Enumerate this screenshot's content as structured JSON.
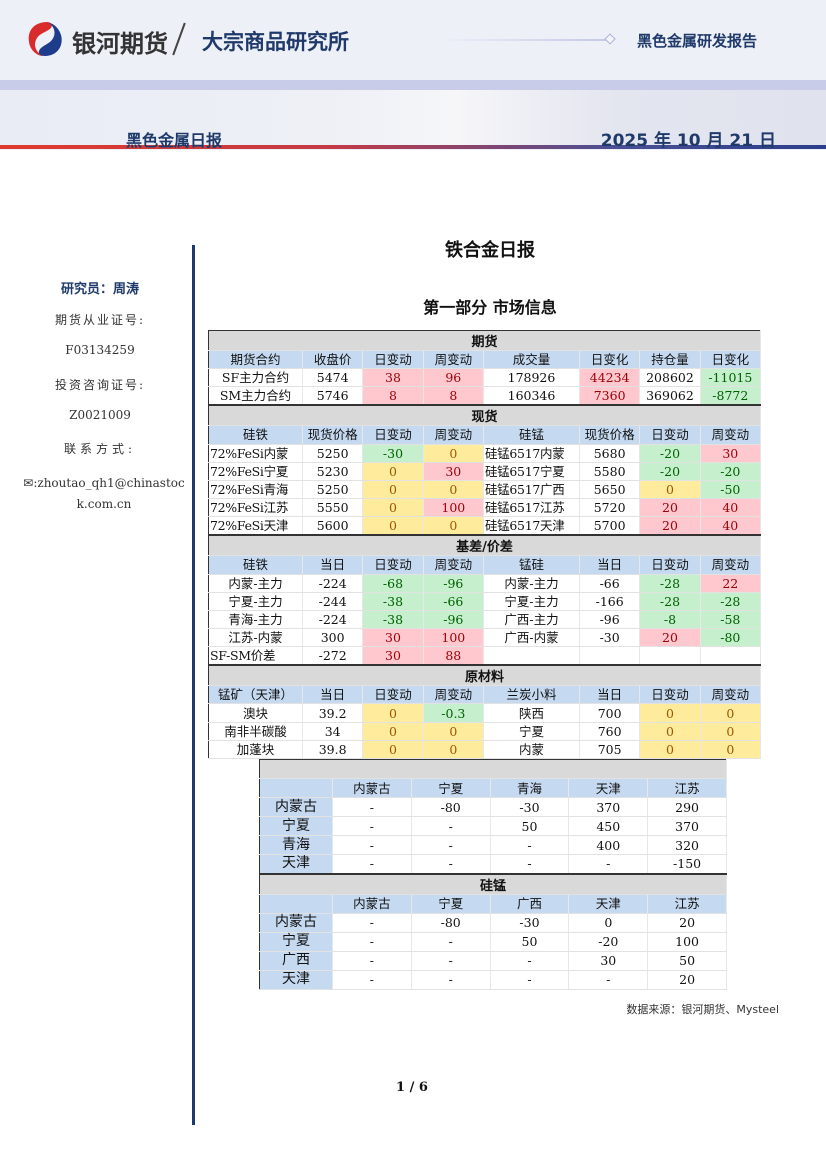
{
  "header": {
    "brand": "银河期货",
    "institute": "大宗商品研究所",
    "report_type": "黑色金属研发报告",
    "daily_name": "黑色金属日报",
    "date": "2025 年 10 月 21 日"
  },
  "sidebar": {
    "researcher": "研究员：周涛",
    "cert1_label": "期货从业证号:",
    "cert1": "F03134259",
    "cert2_label": "投资咨询证号:",
    "cert2": "Z0021009",
    "contact_label": "联系方式:",
    "email": "zhoutao_qh1@chinastock.com.cn"
  },
  "main": {
    "title": "铁合金日报",
    "section": "第一部分 市场信息",
    "source": "数据来源：银河期货、Mysteel",
    "page": "1 / 6"
  },
  "tones": {
    "r": "#ffc7ce",
    "g": "#c6efce",
    "y": "#ffeb9c"
  },
  "market_table": {
    "sections": [
      {
        "title": "期货",
        "headers": [
          "期货合约",
          "收盘价",
          "日变动",
          "周变动",
          "成交量",
          "日变化",
          "持仓量",
          "日变化"
        ],
        "rows": [
          [
            "SF主力合约",
            "5474",
            "38",
            "96",
            "178926",
            "44234",
            "208602",
            "-11015"
          ],
          [
            "SM主力合约",
            "5746",
            "8",
            "8",
            "160346",
            "7360",
            "369062",
            "-8772"
          ]
        ],
        "tones": [
          [
            "",
            "",
            "r",
            "r",
            "",
            "r",
            "",
            "g"
          ],
          [
            "",
            "",
            "r",
            "r",
            "",
            "r",
            "",
            "g"
          ]
        ]
      },
      {
        "title": "现货",
        "headers": [
          "硅铁",
          "现货价格",
          "日变动",
          "周变动",
          "硅锰",
          "现货价格",
          "日变动",
          "周变动"
        ],
        "rows": [
          [
            "72%FeSi内蒙",
            "5250",
            "-30",
            "0",
            "硅锰6517内蒙",
            "5680",
            "-20",
            "30"
          ],
          [
            "72%FeSi宁夏",
            "5230",
            "0",
            "30",
            "硅锰6517宁夏",
            "5580",
            "-20",
            "-20"
          ],
          [
            "72%FeSi青海",
            "5250",
            "0",
            "0",
            "硅锰6517广西",
            "5650",
            "0",
            "-50"
          ],
          [
            "72%FeSi江苏",
            "5550",
            "0",
            "100",
            "硅锰6517江苏",
            "5720",
            "20",
            "40"
          ],
          [
            "72%FeSi天津",
            "5600",
            "0",
            "0",
            "硅锰6517天津",
            "5700",
            "20",
            "40"
          ]
        ],
        "tones": [
          [
            "",
            "",
            "g",
            "y",
            "",
            "",
            "g",
            "r"
          ],
          [
            "",
            "",
            "y",
            "r",
            "",
            "",
            "g",
            "g"
          ],
          [
            "",
            "",
            "y",
            "y",
            "",
            "",
            "y",
            "g"
          ],
          [
            "",
            "",
            "y",
            "r",
            "",
            "",
            "r",
            "r"
          ],
          [
            "",
            "",
            "y",
            "y",
            "",
            "",
            "r",
            "r"
          ]
        ]
      },
      {
        "title": "基差/价差",
        "headers": [
          "硅铁",
          "当日",
          "日变动",
          "周变动",
          "锰硅",
          "当日",
          "日变动",
          "周变动"
        ],
        "rows": [
          [
            "内蒙-主力",
            "-224",
            "-68",
            "-96",
            "内蒙-主力",
            "-66",
            "-28",
            "22"
          ],
          [
            "宁夏-主力",
            "-244",
            "-38",
            "-66",
            "宁夏-主力",
            "-166",
            "-28",
            "-28"
          ],
          [
            "青海-主力",
            "-224",
            "-38",
            "-96",
            "广西-主力",
            "-96",
            "-8",
            "-58"
          ],
          [
            "江苏-内蒙",
            "300",
            "30",
            "100",
            "广西-内蒙",
            "-30",
            "20",
            "-80"
          ],
          [
            "SF-SM价差",
            "-272",
            "30",
            "88",
            "",
            "",
            "",
            ""
          ]
        ],
        "tones": [
          [
            "",
            "",
            "g",
            "g",
            "",
            "",
            "g",
            "r"
          ],
          [
            "",
            "",
            "g",
            "g",
            "",
            "",
            "g",
            "g"
          ],
          [
            "",
            "",
            "g",
            "g",
            "",
            "",
            "g",
            "g"
          ],
          [
            "",
            "",
            "r",
            "r",
            "",
            "",
            "r",
            "g"
          ],
          [
            "",
            "",
            "r",
            "r",
            "",
            "",
            "",
            ""
          ]
        ]
      },
      {
        "title": "原材料",
        "headers": [
          "锰矿（天津）",
          "当日",
          "日变动",
          "周变动",
          "兰炭小料",
          "当日",
          "日变动",
          "周变动"
        ],
        "rows": [
          [
            "澳块",
            "39.2",
            "0",
            "-0.3",
            "陕西",
            "700",
            "0",
            "0"
          ],
          [
            "南非半碳酸",
            "34",
            "0",
            "0",
            "宁夏",
            "760",
            "0",
            "0"
          ],
          [
            "加蓬块",
            "39.8",
            "0",
            "0",
            "内蒙",
            "705",
            "0",
            "0"
          ]
        ],
        "tones": [
          [
            "",
            "",
            "y",
            "g",
            "",
            "",
            "y",
            "y"
          ],
          [
            "",
            "",
            "y",
            "y",
            "",
            "",
            "y",
            "y"
          ],
          [
            "",
            "",
            "y",
            "y",
            "",
            "",
            "y",
            "y"
          ]
        ]
      }
    ]
  },
  "spread_table": {
    "sections": [
      {
        "title": "",
        "headers": [
          "",
          "内蒙古",
          "宁夏",
          "青海",
          "天津",
          "江苏"
        ],
        "rows": [
          [
            "内蒙古",
            "-",
            "-80",
            "-30",
            "370",
            "290"
          ],
          [
            "宁夏",
            "-",
            "-",
            "50",
            "450",
            "370"
          ],
          [
            "青海",
            "-",
            "-",
            "-",
            "400",
            "320"
          ],
          [
            "天津",
            "-",
            "-",
            "-",
            "-",
            "-150"
          ]
        ]
      },
      {
        "title": "硅锰",
        "headers": [
          "",
          "内蒙古",
          "宁夏",
          "广西",
          "天津",
          "江苏"
        ],
        "rows": [
          [
            "内蒙古",
            "-",
            "-80",
            "-30",
            "0",
            "20"
          ],
          [
            "宁夏",
            "-",
            "-",
            "50",
            "-20",
            "100"
          ],
          [
            "广西",
            "-",
            "-",
            "-",
            "30",
            "50"
          ],
          [
            "天津",
            "-",
            "-",
            "-",
            "-",
            "20"
          ]
        ]
      }
    ]
  }
}
